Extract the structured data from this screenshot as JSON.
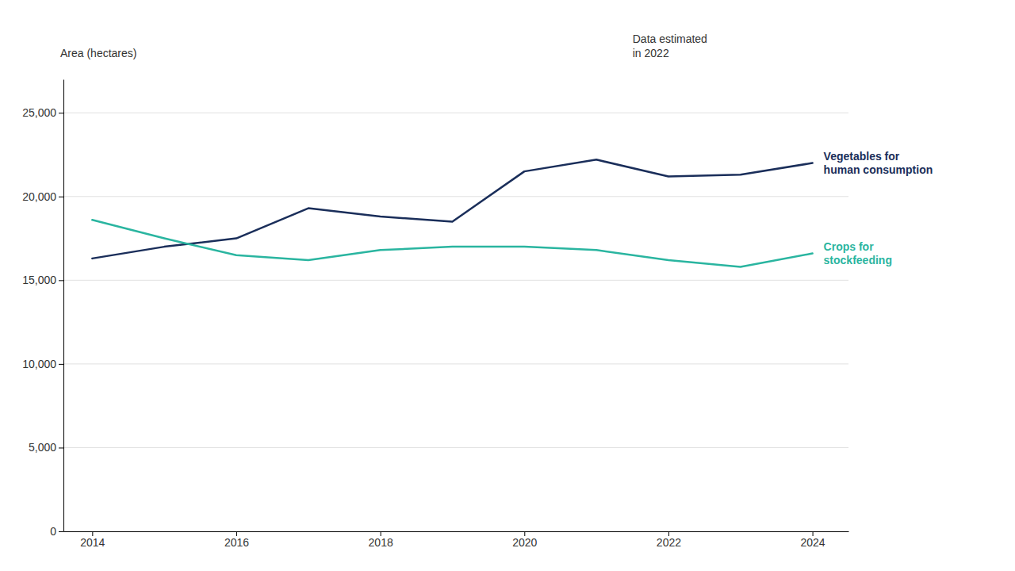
{
  "chart_data": {
    "type": "line",
    "y_label": "Area (hectares)",
    "annotation": "Data estimated\nin 2022",
    "x": [
      2014,
      2015,
      2016,
      2017,
      2018,
      2019,
      2020,
      2021,
      2022,
      2023,
      2024
    ],
    "series": [
      {
        "name": "Vegetables for\nhuman consumption",
        "color": "#1a2e5a",
        "values": [
          16300,
          17000,
          17500,
          19300,
          18800,
          18500,
          21500,
          22200,
          21200,
          21300,
          22000
        ]
      },
      {
        "name": "Crops for\nstockfeeding",
        "color": "#2ab5a0",
        "values": [
          18600,
          17500,
          16500,
          16200,
          16800,
          17000,
          17000,
          16800,
          16200,
          15800,
          16600
        ]
      }
    ],
    "xlim": [
      2013.6,
      2024.5
    ],
    "xticks": [
      2014,
      2016,
      2018,
      2020,
      2022,
      2024
    ],
    "ylim": [
      0,
      27000
    ],
    "yticks": [
      0,
      {
        "value": 5000,
        "label": "5,000"
      },
      {
        "value": 10000,
        "label": "10,000"
      },
      {
        "value": 15000,
        "label": "15,000"
      },
      {
        "value": 20000,
        "label": "20,000"
      },
      {
        "value": 25000,
        "label": "25,000"
      }
    ],
    "grid": true
  }
}
